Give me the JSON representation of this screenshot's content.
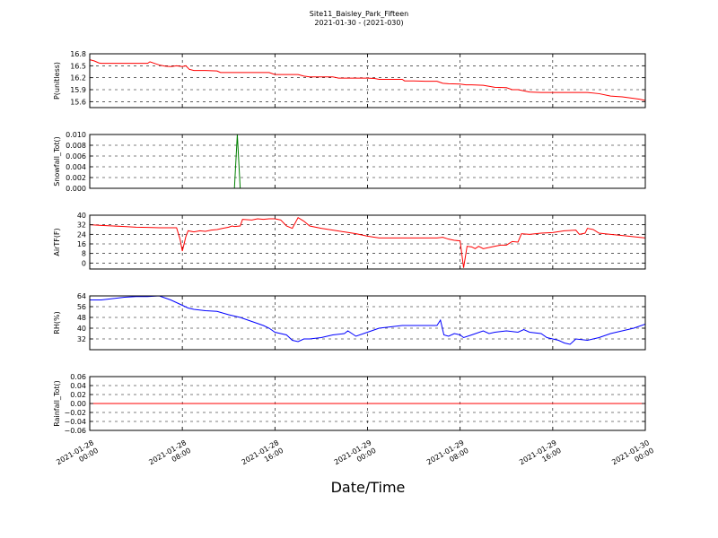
{
  "title": {
    "line1": "Site11_Baisley_Park_Fifteen",
    "line2": "2021-01-30 - (2021-030)"
  },
  "colors": {
    "red": "#ff0000",
    "green": "#008000",
    "blue": "#0000ff"
  },
  "chart_data": [
    {
      "id": "p",
      "type": "line",
      "ylabel": "P(unitless)",
      "ylim": [
        15.45,
        16.8
      ],
      "yticks": [
        15.6,
        15.9,
        16.2,
        16.5,
        16.8
      ],
      "tick_labels": [
        "15.6",
        "15.9",
        "16.2",
        "16.5",
        "16.8"
      ],
      "grid": true,
      "series": [
        {
          "color": "red",
          "points": [
            [
              0,
              16.65
            ],
            [
              0.4,
              16.62
            ],
            [
              0.8,
              16.57
            ],
            [
              1,
              16.56
            ],
            [
              3,
              16.56
            ],
            [
              5,
              16.56
            ],
            [
              5.2,
              16.6
            ],
            [
              5.6,
              16.56
            ],
            [
              6,
              16.52
            ],
            [
              6.5,
              16.49
            ],
            [
              7,
              16.48
            ],
            [
              7.5,
              16.5
            ],
            [
              8,
              16.48
            ],
            [
              8.3,
              16.5
            ],
            [
              8.6,
              16.41
            ],
            [
              9,
              16.38
            ],
            [
              10,
              16.38
            ],
            [
              11,
              16.37
            ],
            [
              11.3,
              16.33
            ],
            [
              12,
              16.33
            ],
            [
              13,
              16.33
            ],
            [
              14,
              16.33
            ],
            [
              15.5,
              16.33
            ],
            [
              16,
              16.28
            ],
            [
              17,
              16.28
            ],
            [
              18,
              16.28
            ],
            [
              18.5,
              16.24
            ],
            [
              19,
              16.22
            ],
            [
              20,
              16.22
            ],
            [
              21,
              16.22
            ],
            [
              21.5,
              16.19
            ],
            [
              22,
              16.19
            ],
            [
              23,
              16.19
            ],
            [
              24,
              16.19
            ],
            [
              24.6,
              16.18
            ],
            [
              25,
              16.16
            ],
            [
              26,
              16.16
            ],
            [
              27,
              16.16
            ],
            [
              27.2,
              16.12
            ],
            [
              28,
              16.12
            ],
            [
              29,
              16.11
            ],
            [
              30,
              16.11
            ],
            [
              30.5,
              16.06
            ],
            [
              31,
              16.05
            ],
            [
              32,
              16.04
            ],
            [
              32.5,
              16.02
            ],
            [
              33,
              16.02
            ],
            [
              34,
              16.01
            ],
            [
              35,
              15.96
            ],
            [
              36,
              15.95
            ],
            [
              36.5,
              15.9
            ],
            [
              37,
              15.9
            ],
            [
              38,
              15.84
            ],
            [
              39,
              15.83
            ],
            [
              40,
              15.83
            ],
            [
              41,
              15.83
            ],
            [
              42,
              15.83
            ],
            [
              43,
              15.83
            ],
            [
              44,
              15.8
            ],
            [
              45,
              15.74
            ],
            [
              46,
              15.72
            ],
            [
              47,
              15.68
            ],
            [
              47.5,
              15.66
            ],
            [
              48,
              15.63
            ]
          ]
        }
      ]
    },
    {
      "id": "snowfall",
      "type": "line",
      "ylabel": "Snowfall_Tot()",
      "ylim": [
        0,
        0.01
      ],
      "yticks": [
        0,
        0.002,
        0.004,
        0.006,
        0.008,
        0.01
      ],
      "tick_labels": [
        "0.000",
        "0.002",
        "0.004",
        "0.006",
        "0.008",
        "0.010"
      ],
      "grid": true,
      "series": [
        {
          "color": "green",
          "points": [
            [
              0,
              0
            ],
            [
              12.5,
              0
            ],
            [
              12.75,
              0.01
            ],
            [
              13,
              0
            ],
            [
              48,
              0
            ]
          ]
        }
      ]
    },
    {
      "id": "airtf",
      "type": "line",
      "ylabel": "AirTF(F)",
      "ylim": [
        -5,
        40
      ],
      "yticks": [
        0,
        8,
        16,
        24,
        32,
        40
      ],
      "tick_labels": [
        "0",
        "8",
        "16",
        "24",
        "32",
        "40"
      ],
      "grid": true,
      "series": [
        {
          "color": "red",
          "points": [
            [
              0,
              32
            ],
            [
              1,
              31.5
            ],
            [
              2,
              31
            ],
            [
              3,
              30.5
            ],
            [
              4,
              30
            ],
            [
              5,
              29.8
            ],
            [
              6,
              29.5
            ],
            [
              7,
              29.5
            ],
            [
              7.5,
              29.5
            ],
            [
              7.8,
              20
            ],
            [
              8,
              10
            ],
            [
              8.3,
              22
            ],
            [
              8.5,
              27
            ],
            [
              9,
              26
            ],
            [
              9.5,
              27
            ],
            [
              10,
              26.5
            ],
            [
              10.5,
              27.5
            ],
            [
              11,
              28
            ],
            [
              11.5,
              29
            ],
            [
              12,
              30
            ],
            [
              12.3,
              31
            ],
            [
              12.5,
              30.5
            ],
            [
              13,
              31
            ],
            [
              13.2,
              36.5
            ],
            [
              14,
              36
            ],
            [
              14.5,
              37
            ],
            [
              15,
              36.5
            ],
            [
              15.5,
              37
            ],
            [
              16,
              37
            ],
            [
              16.5,
              36
            ],
            [
              17,
              31
            ],
            [
              17.5,
              29
            ],
            [
              18,
              38
            ],
            [
              18.5,
              35
            ],
            [
              19,
              31
            ],
            [
              20,
              29
            ],
            [
              21,
              27.5
            ],
            [
              22,
              26
            ],
            [
              23,
              24.5
            ],
            [
              24,
              22.5
            ],
            [
              25,
              21
            ],
            [
              26,
              21
            ],
            [
              27,
              21
            ],
            [
              28,
              21
            ],
            [
              29,
              21
            ],
            [
              30,
              21
            ],
            [
              30.5,
              21.5
            ],
            [
              31,
              20
            ],
            [
              31.5,
              19
            ],
            [
              32,
              18.5
            ],
            [
              32.3,
              -4
            ],
            [
              32.6,
              14
            ],
            [
              33,
              13.5
            ],
            [
              33.3,
              12
            ],
            [
              33.6,
              14
            ],
            [
              34,
              12
            ],
            [
              35,
              14
            ],
            [
              35.5,
              15
            ],
            [
              36,
              15
            ],
            [
              36.5,
              18
            ],
            [
              37,
              17.5
            ],
            [
              37.3,
              24.5
            ],
            [
              38,
              24
            ],
            [
              39,
              25
            ],
            [
              40,
              25.5
            ],
            [
              41,
              27
            ],
            [
              42,
              27.5
            ],
            [
              42.3,
              24
            ],
            [
              42.8,
              25
            ],
            [
              43,
              29
            ],
            [
              43.5,
              28
            ],
            [
              44,
              25
            ],
            [
              45,
              24
            ],
            [
              46,
              23
            ],
            [
              47,
              22
            ],
            [
              48,
              21
            ]
          ]
        }
      ]
    },
    {
      "id": "rh",
      "type": "line",
      "ylabel": "RH(%)",
      "ylim": [
        24,
        64
      ],
      "yticks": [
        32,
        40,
        48,
        56,
        64
      ],
      "tick_labels": [
        "32",
        "40",
        "48",
        "56",
        "64"
      ],
      "grid": true,
      "series": [
        {
          "color": "blue",
          "points": [
            [
              0,
              61
            ],
            [
              1,
              61
            ],
            [
              2,
              62
            ],
            [
              3,
              63
            ],
            [
              4,
              63.5
            ],
            [
              5,
              63.5
            ],
            [
              6,
              64
            ],
            [
              7,
              61
            ],
            [
              8,
              57
            ],
            [
              8.5,
              55
            ],
            [
              9,
              54
            ],
            [
              10,
              53
            ],
            [
              11,
              52.5
            ],
            [
              12,
              50
            ],
            [
              13,
              48
            ],
            [
              14,
              45
            ],
            [
              15,
              42
            ],
            [
              15.5,
              40
            ],
            [
              16,
              37
            ],
            [
              17,
              35
            ],
            [
              17.5,
              31
            ],
            [
              18,
              30
            ],
            [
              18.5,
              32
            ],
            [
              19,
              32
            ],
            [
              20,
              33
            ],
            [
              21,
              35
            ],
            [
              22,
              36
            ],
            [
              22.3,
              38
            ],
            [
              23,
              34
            ],
            [
              24,
              37
            ],
            [
              25,
              40
            ],
            [
              26,
              41
            ],
            [
              27,
              42
            ],
            [
              28,
              42
            ],
            [
              29,
              42
            ],
            [
              30,
              42
            ],
            [
              30.3,
              46
            ],
            [
              30.6,
              35
            ],
            [
              31,
              34
            ],
            [
              31.5,
              36
            ],
            [
              32,
              35
            ],
            [
              32.3,
              33
            ],
            [
              33,
              35
            ],
            [
              34,
              38
            ],
            [
              34.5,
              36
            ],
            [
              35,
              37
            ],
            [
              36,
              38
            ],
            [
              37,
              37
            ],
            [
              37.5,
              39
            ],
            [
              38,
              37
            ],
            [
              39,
              36
            ],
            [
              39.5,
              33
            ],
            [
              40,
              32
            ],
            [
              40.5,
              31
            ],
            [
              41,
              29
            ],
            [
              41.5,
              28
            ],
            [
              42,
              32
            ],
            [
              43,
              31
            ],
            [
              44,
              33
            ],
            [
              45,
              36
            ],
            [
              46,
              38
            ],
            [
              47,
              40
            ],
            [
              48,
              43
            ]
          ]
        }
      ]
    },
    {
      "id": "rainfall",
      "type": "line",
      "ylabel": "Rainfall_Tot()",
      "ylim": [
        -0.06,
        0.06
      ],
      "yticks": [
        -0.06,
        -0.04,
        -0.02,
        0,
        0.02,
        0.04,
        0.06
      ],
      "tick_labels": [
        "−0.06",
        "−0.04",
        "−0.02",
        "0.00",
        "0.02",
        "0.04",
        "0.06"
      ],
      "grid": true,
      "series": [
        {
          "color": "red",
          "points": [
            [
              0,
              0
            ],
            [
              48,
              0
            ]
          ]
        }
      ]
    }
  ],
  "x_axis": {
    "range_hours": [
      0,
      48
    ],
    "ticks": [
      {
        "hour": 0,
        "line1": "2021-01-28",
        "line2": "00:00"
      },
      {
        "hour": 8,
        "line1": "2021-01-28",
        "line2": "08:00"
      },
      {
        "hour": 16,
        "line1": "2021-01-28",
        "line2": "16:00"
      },
      {
        "hour": 24,
        "line1": "2021-01-29",
        "line2": "00:00"
      },
      {
        "hour": 32,
        "line1": "2021-01-29",
        "line2": "08:00"
      },
      {
        "hour": 40,
        "line1": "2021-01-29",
        "line2": "16:00"
      },
      {
        "hour": 48,
        "line1": "2021-01-30",
        "line2": "00:00"
      }
    ],
    "xlabel": "Date/Time"
  }
}
